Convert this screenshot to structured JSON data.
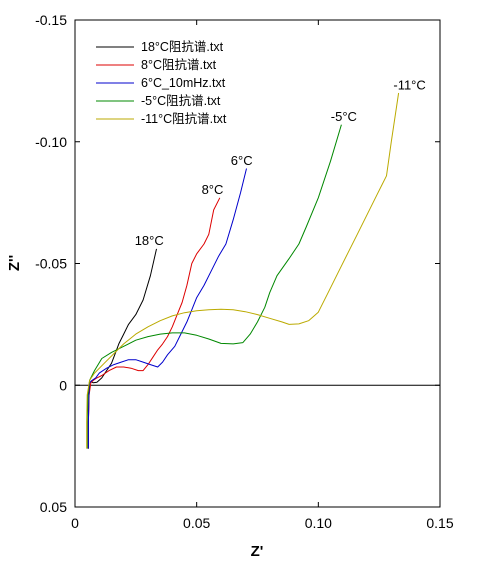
{
  "chart_data": {
    "type": "line",
    "xlabel": "Z'",
    "ylabel": "Z''",
    "xlim": [
      0,
      0.15
    ],
    "ylim": [
      0.05,
      -0.15
    ],
    "x_ticks": [
      0,
      0.05,
      0.1,
      0.15
    ],
    "x_tick_labels": [
      "0",
      "0.05",
      "0.10",
      "0.15"
    ],
    "y_ticks": [
      -0.15,
      -0.1,
      -0.05,
      0,
      0.05
    ],
    "y_tick_labels": [
      "-0.15",
      "-0.10",
      "-0.05",
      "0",
      "0.05"
    ],
    "zero_line": true,
    "grid": false,
    "legend_position": "top-left",
    "series": [
      {
        "name": "18°C阻抗谱.txt",
        "color": "#000000",
        "x": [
          0.0055,
          0.0055,
          0.0057,
          0.006,
          0.0065,
          0.0075,
          0.009,
          0.011,
          0.013,
          0.015,
          0.0165,
          0.018,
          0.02,
          0.022,
          0.025,
          0.028,
          0.031,
          0.0335
        ],
        "y": [
          0.026,
          0.015,
          0.005,
          -0.001,
          -0.0015,
          -0.001,
          -0.0012,
          -0.003,
          -0.006,
          -0.009,
          -0.013,
          -0.017,
          -0.021,
          -0.025,
          -0.029,
          -0.035,
          -0.045,
          -0.056
        ]
      },
      {
        "name": "8°C阻抗谱.txt",
        "color": "#dd0000",
        "x": [
          0.0055,
          0.0055,
          0.0058,
          0.0065,
          0.0075,
          0.009,
          0.011,
          0.014,
          0.017,
          0.02,
          0.023,
          0.026,
          0.028,
          0.03,
          0.032,
          0.034,
          0.036,
          0.038,
          0.04,
          0.042,
          0.044,
          0.046,
          0.048,
          0.05,
          0.053,
          0.055,
          0.057,
          0.0595
        ],
        "y": [
          0.026,
          0.015,
          0.004,
          -0.001,
          -0.002,
          -0.003,
          -0.004,
          -0.006,
          -0.0075,
          -0.0075,
          -0.007,
          -0.006,
          -0.006,
          -0.0085,
          -0.0115,
          -0.0145,
          -0.017,
          -0.02,
          -0.024,
          -0.029,
          -0.034,
          -0.041,
          -0.05,
          -0.054,
          -0.058,
          -0.062,
          -0.072,
          -0.077
        ]
      },
      {
        "name": "6°C_10mHz.txt",
        "color": "#0000cc",
        "x": [
          0.0055,
          0.0055,
          0.0057,
          0.006,
          0.007,
          0.0085,
          0.01,
          0.013,
          0.016,
          0.019,
          0.022,
          0.025,
          0.028,
          0.031,
          0.034,
          0.036,
          0.038,
          0.041,
          0.043,
          0.046,
          0.048,
          0.05,
          0.053,
          0.056,
          0.059,
          0.062,
          0.065,
          0.068,
          0.0705
        ],
        "y": [
          0.026,
          0.015,
          0.004,
          -0.001,
          -0.002,
          -0.003,
          -0.005,
          -0.007,
          -0.0085,
          -0.0095,
          -0.0105,
          -0.0105,
          -0.0095,
          -0.0085,
          -0.0075,
          -0.0095,
          -0.0125,
          -0.016,
          -0.02,
          -0.026,
          -0.031,
          -0.036,
          -0.041,
          -0.047,
          -0.053,
          -0.058,
          -0.068,
          -0.079,
          -0.089
        ]
      },
      {
        "name": "-5°C阻抗谱.txt",
        "color": "#008800",
        "x": [
          0.005,
          0.005,
          0.0053,
          0.006,
          0.008,
          0.011,
          0.015,
          0.02,
          0.025,
          0.03,
          0.035,
          0.04,
          0.045,
          0.05,
          0.055,
          0.06,
          0.065,
          0.069,
          0.072,
          0.075,
          0.078,
          0.08,
          0.083,
          0.088,
          0.092,
          0.095,
          0.1,
          0.105,
          0.1095
        ],
        "y": [
          0.026,
          0.015,
          0.004,
          -0.002,
          -0.006,
          -0.011,
          -0.0135,
          -0.016,
          -0.0185,
          -0.02,
          -0.021,
          -0.0215,
          -0.0215,
          -0.0205,
          -0.019,
          -0.0172,
          -0.017,
          -0.0175,
          -0.021,
          -0.026,
          -0.032,
          -0.038,
          -0.045,
          -0.052,
          -0.058,
          -0.065,
          -0.077,
          -0.092,
          -0.107
        ]
      },
      {
        "name": "-11°C阻抗谱.txt",
        "color": "#bbaa00",
        "x": [
          0.0048,
          0.0048,
          0.005,
          0.006,
          0.008,
          0.012,
          0.016,
          0.02,
          0.025,
          0.03,
          0.035,
          0.04,
          0.045,
          0.05,
          0.055,
          0.06,
          0.065,
          0.07,
          0.075,
          0.08,
          0.085,
          0.088,
          0.092,
          0.096,
          0.1,
          0.104,
          0.108,
          0.112,
          0.116,
          0.12,
          0.124,
          0.128,
          0.13,
          0.133
        ],
        "y": [
          0.026,
          0.015,
          0.004,
          -0.002,
          -0.005,
          -0.009,
          -0.013,
          -0.017,
          -0.021,
          -0.024,
          -0.0265,
          -0.0285,
          -0.0298,
          -0.0306,
          -0.031,
          -0.0312,
          -0.031,
          -0.0302,
          -0.029,
          -0.0275,
          -0.026,
          -0.025,
          -0.0252,
          -0.0265,
          -0.03,
          -0.038,
          -0.046,
          -0.054,
          -0.062,
          -0.07,
          -0.078,
          -0.086,
          -0.1,
          -0.12
        ]
      }
    ],
    "annotations": [
      {
        "text": "18°C",
        "x": 0.0305,
        "y": -0.0575
      },
      {
        "text": "8°C",
        "x": 0.0565,
        "y": -0.0785
      },
      {
        "text": "6°C",
        "x": 0.0685,
        "y": -0.0905
      },
      {
        "text": "-5°C",
        "x": 0.1105,
        "y": -0.1085
      },
      {
        "text": "-11°C",
        "x": 0.1375,
        "y": -0.1215
      }
    ]
  }
}
